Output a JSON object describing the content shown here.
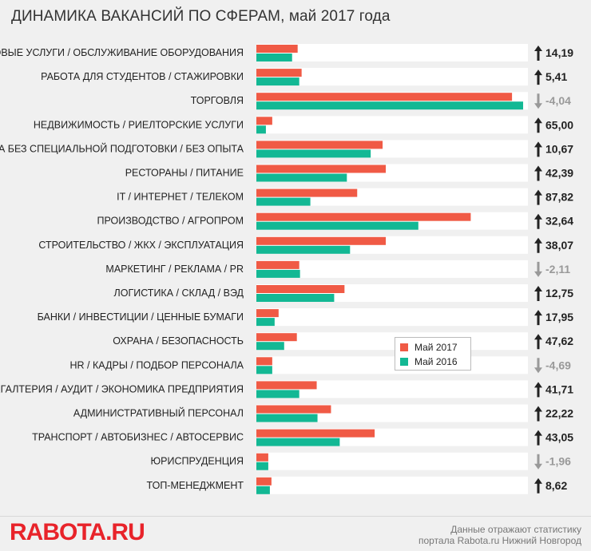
{
  "title": "ДИНАМИКА ВАКАНСИЙ ПО СФЕРАМ, май 2017 года",
  "colors": {
    "may2017": "#f05a45",
    "may2016": "#13b894",
    "up_arrow": "#222222",
    "down_arrow": "#999999",
    "track": "#ffffff"
  },
  "legend": {
    "may2017": "Май 2017",
    "may2016": "Май 2016"
  },
  "chart_data": {
    "type": "bar",
    "orientation": "horizontal",
    "categories": [
      "БЫТОВЫЕ УСЛУГИ / ОБСЛУЖИВАНИЕ ОБОРУДОВАНИЯ",
      "РАБОТА ДЛЯ СТУДЕНТОВ / СТАЖИРОВКИ",
      "ТОРГОВЛЯ",
      "НЕДВИЖИМОСТЬ / РИЕЛТОРСКИЕ УСЛУГИ",
      "РАБОТА БЕЗ СПЕЦИАЛЬНОЙ ПОДГОТОВКИ / БЕЗ ОПЫТА",
      "РЕСТОРАНЫ / ПИТАНИЕ",
      "IT / ИНТЕРНЕТ / ТЕЛЕКОМ",
      "ПРОИЗВОДСТВО / АГРОПРОМ",
      "СТРОИТЕЛЬСТВО / ЖКХ / ЭКСПЛУАТАЦИЯ",
      "МАРКЕТИНГ / РЕКЛАМА / PR",
      "ЛОГИСТИКА / СКЛАД / ВЭД",
      "БАНКИ / ИНВЕСТИЦИИ / ЦЕННЫЕ БУМАГИ",
      "ОХРАНА / БЕЗОПАСНОСТЬ",
      "HR / КАДРЫ / ПОДБОР ПЕРСОНАЛА",
      "БУХГАЛТЕРИЯ / АУДИТ / ЭКОНОМИКА ПРЕДПРИЯТИЯ",
      "АДМИНИСТРАТИВНЫЙ ПЕРСОНАЛ",
      "ТРАНСПОРТ / АВТОБИЗНЕС / АВТОСЕРВИС",
      "ЮРИСПРУДЕНЦИЯ",
      "ТОП-МЕНЕДЖМЕНТ"
    ],
    "series": [
      {
        "name": "Май 2017",
        "values": [
          52,
          57,
          322,
          20,
          159,
          163,
          127,
          270,
          163,
          54,
          111,
          28,
          51,
          20,
          76,
          94,
          149,
          15,
          19
        ]
      },
      {
        "name": "Май 2016",
        "values": [
          45,
          54,
          336,
          12,
          144,
          114,
          68,
          204,
          118,
          55,
          98,
          23,
          35,
          20,
          54,
          77,
          105,
          15,
          17
        ]
      }
    ],
    "xlim": [
      0,
      340
    ],
    "changes": [
      "14,19",
      "5,41",
      "-4,04",
      "65,00",
      "10,67",
      "42,39",
      "87,82",
      "32,64",
      "38,07",
      "-2,11",
      "12,75",
      "17,95",
      "47,62",
      "-4,69",
      "41,71",
      "22,22",
      "43,05",
      "-1,96",
      "8,62"
    ],
    "change_direction": [
      "up",
      "up",
      "down",
      "up",
      "up",
      "up",
      "up",
      "up",
      "up",
      "down",
      "up",
      "up",
      "up",
      "down",
      "up",
      "up",
      "up",
      "down",
      "up"
    ]
  },
  "logo_text": "RABOTA.RU",
  "footer_note": {
    "line1": "Данные отражают статистику",
    "line2": "портала Rabota.ru Нижний Новгород"
  }
}
